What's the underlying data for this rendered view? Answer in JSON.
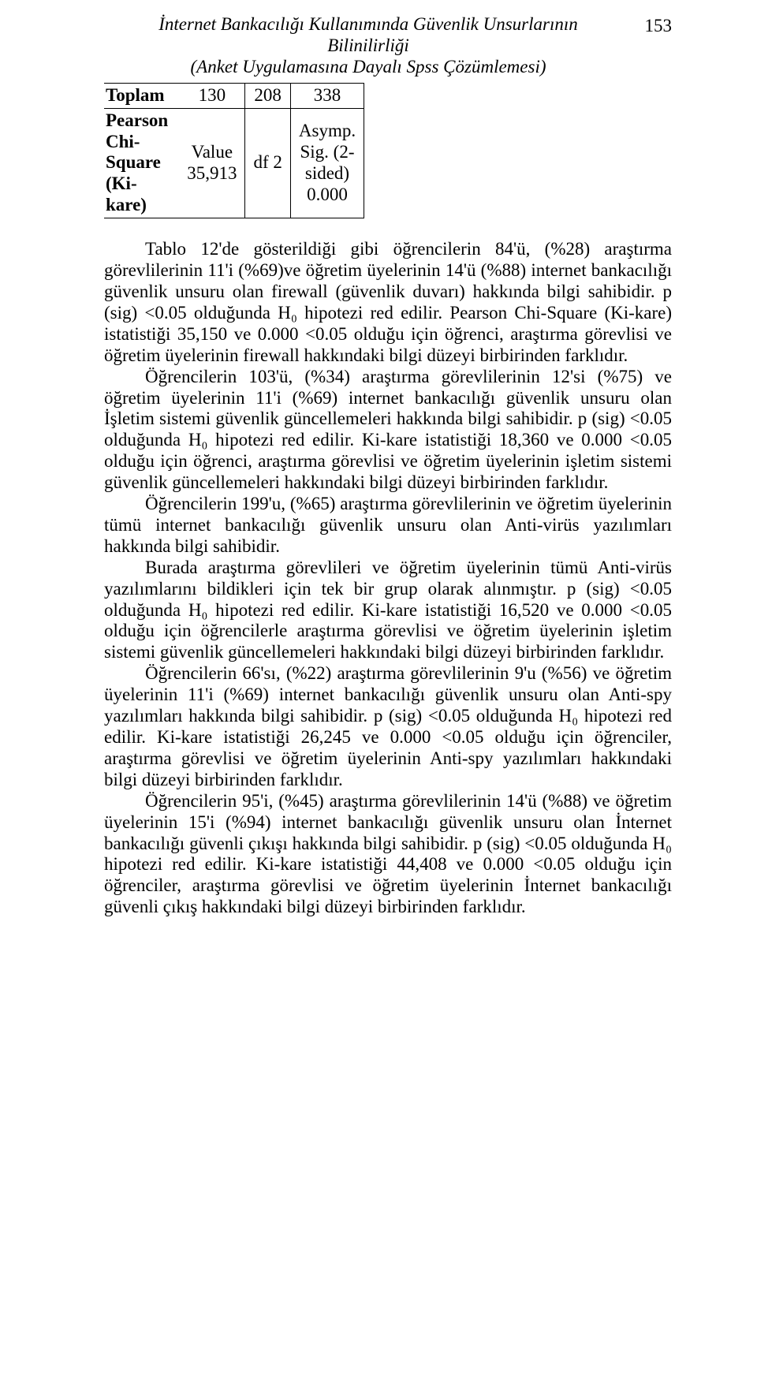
{
  "page_number": "153",
  "header": {
    "line1": "İnternet Bankacılığı Kullanımında Güvenlik Unsurlarının",
    "line2": "Bilinilirliği",
    "line3": "(Anket Uygulamasına Dayalı Spss Çözümlemesi)"
  },
  "table": {
    "total_row": {
      "label": "Toplam",
      "c1": "130",
      "c2": "208",
      "c3": "338"
    },
    "chi2_row": {
      "label_l1": "Pearson",
      "label_l2": "Chi-",
      "label_l3": "Square",
      "label_l4": "(Ki-",
      "label_l5": "kare)",
      "value_l1": "Value",
      "value_l2": "35,913",
      "df": "df  2",
      "sig_l1": "Asymp.",
      "sig_l2": "Sig. (2-",
      "sig_l3": "sided)",
      "sig_l4": "0.000"
    }
  },
  "paragraphs": {
    "p1": "Tablo 12'de gösterildiği gibi öğrencilerin 84'ü, (%28) araştırma görevlilerinin 11'i (%69)ve öğretim üyelerinin 14'ü (%88) internet bankacılığı güvenlik unsuru olan firewall (güvenlik duvarı) hakkında bilgi sahibidir. p (sig) <0.05 olduğunda H₀  hipotezi red edilir. Pearson Chi-Square (Ki-kare) istatistiği 35,150 ve 0.000 <0.05 olduğu için öğrenci, araştırma görevlisi ve öğretim üyelerinin firewall hakkındaki bilgi düzeyi birbirinden farklıdır.",
    "p2": "Öğrencilerin 103'ü, (%34) araştırma görevlilerinin 12'si (%75) ve öğretim üyelerinin 11'i (%69) internet bankacılığı güvenlik unsuru olan İşletim sistemi güvenlik güncellemeleri hakkında bilgi sahibidir. p (sig) <0.05 olduğunda H₀ hipotezi red edilir. Ki-kare istatistiği 18,360 ve 0.000 <0.05 olduğu için öğrenci, araştırma görevlisi ve öğretim üyelerinin işletim sistemi güvenlik güncellemeleri hakkındaki bilgi düzeyi birbirinden farklıdır.",
    "p3": "Öğrencilerin 199'u, (%65) araştırma görevlilerinin ve öğretim üyelerinin tümü internet bankacılığı güvenlik unsuru olan Anti-virüs yazılımları hakkında bilgi sahibidir.",
    "p4": "Burada araştırma görevlileri ve öğretim üyelerinin tümü Anti-virüs yazılımlarını bildikleri için tek bir grup olarak alınmıştır. p (sig) <0.05 olduğunda H₀  hipotezi red edilir. Ki-kare istatistiği 16,520 ve 0.000 <0.05 olduğu için öğrencilerle araştırma görevlisi ve öğretim üyelerinin işletim sistemi güvenlik güncellemeleri hakkındaki bilgi düzeyi birbirinden farklıdır.",
    "p5": "Öğrencilerin 66'sı, (%22) araştırma görevlilerinin 9'u (%56) ve öğretim üyelerinin 11'i (%69) internet bankacılığı güvenlik unsuru olan Anti-spy yazılımları hakkında bilgi sahibidir. p (sig) <0.05 olduğunda H₀  hipotezi red edilir. Ki-kare istatistiği 26,245 ve 0.000 <0.05 olduğu için öğrenciler, araştırma görevlisi ve öğretim üyelerinin Anti-spy yazılımları hakkındaki bilgi düzeyi birbirinden farklıdır.",
    "p6": "Öğrencilerin 95'i, (%45) araştırma görevlilerinin 14'ü (%88) ve öğretim üyelerinin 15'i (%94) internet bankacılığı güvenlik unsuru olan İnternet bankacılığı güvenli çıkışı  hakkında bilgi sahibidir. p (sig) <0.05 olduğunda H₀ hipotezi red edilir. Ki-kare istatistiği 44,408 ve 0.000 <0.05 olduğu için öğrenciler, araştırma görevlisi ve öğretim üyelerinin İnternet bankacılığı güvenli çıkış hakkındaki bilgi düzeyi birbirinden farklıdır."
  }
}
